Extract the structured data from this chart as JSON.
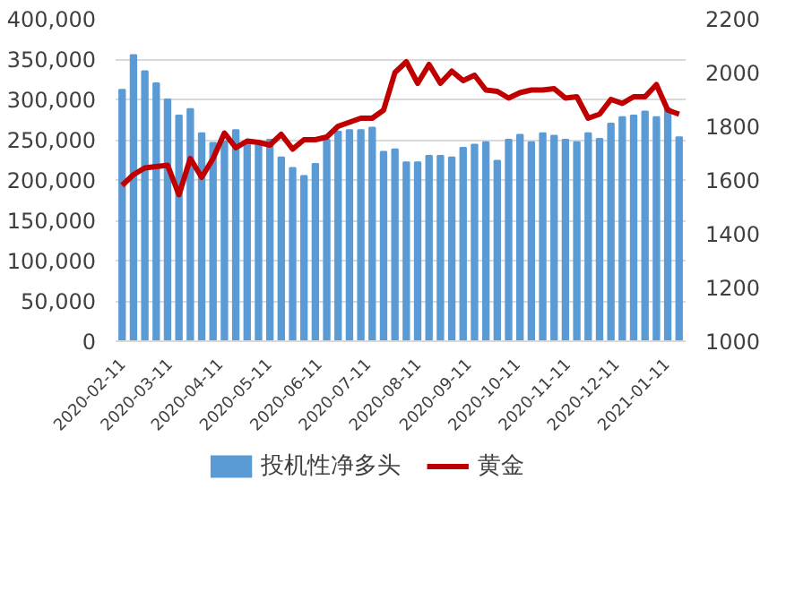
{
  "chart_data": {
    "type": "bar",
    "x": [
      "2020-02-11",
      "2020-02-18",
      "2020-02-25",
      "2020-03-03",
      "2020-03-10",
      "2020-03-17",
      "2020-03-24",
      "2020-03-31",
      "2020-04-07",
      "2020-04-14",
      "2020-04-21",
      "2020-04-28",
      "2020-05-05",
      "2020-05-12",
      "2020-05-19",
      "2020-05-26",
      "2020-06-02",
      "2020-06-09",
      "2020-06-16",
      "2020-06-23",
      "2020-06-30",
      "2020-07-07",
      "2020-07-14",
      "2020-07-21",
      "2020-07-28",
      "2020-08-04",
      "2020-08-11",
      "2020-08-18",
      "2020-08-25",
      "2020-09-01",
      "2020-09-08",
      "2020-09-15",
      "2020-09-22",
      "2020-09-29",
      "2020-10-06",
      "2020-10-13",
      "2020-10-20",
      "2020-10-27",
      "2020-11-03",
      "2020-11-10",
      "2020-11-17",
      "2020-11-24",
      "2020-12-01",
      "2020-12-08",
      "2020-12-15",
      "2020-12-22",
      "2020-12-29",
      "2021-01-05",
      "2021-01-12",
      "2021-01-19"
    ],
    "series": [
      {
        "name": "投机性净多头",
        "color": "#5b9bd5",
        "values": [
          312000,
          355000,
          335000,
          320000,
          300000,
          280000,
          288000,
          258000,
          246000,
          248000,
          262000,
          248000,
          245000,
          250000,
          228000,
          215000,
          205000,
          220000,
          250000,
          260000,
          262000,
          262000,
          265000,
          235000,
          238000,
          222000,
          222000,
          230000,
          230000,
          228000,
          240000,
          244000,
          247000,
          224000,
          250000,
          256000,
          247000,
          258000,
          255000,
          250000,
          247000,
          258000,
          251000,
          270000,
          278000,
          280000,
          285000,
          278000,
          289000,
          253000
        ]
      },
      {
        "name": "黄金",
        "type": "line",
        "axis": "y2",
        "color": "#c00000",
        "values": [
          1580,
          1620,
          1645,
          1650,
          1655,
          1545,
          1680,
          1610,
          1680,
          1775,
          1720,
          1745,
          1740,
          1730,
          1770,
          1715,
          1750,
          1750,
          1760,
          1800,
          1815,
          1830,
          1830,
          1860,
          2000,
          2040,
          1960,
          2030,
          1960,
          2005,
          1970,
          1990,
          1935,
          1930,
          1905,
          1925,
          1935,
          1935,
          1940,
          1905,
          1910,
          1830,
          1845,
          1900,
          1885,
          1910,
          1910,
          1955,
          1860,
          1845
        ]
      }
    ],
    "xlim": [
      "2020-02-07",
      "2021-01-23"
    ],
    "xticks": [
      "2020-02-11",
      "2020-03-11",
      "2020-04-11",
      "2020-05-11",
      "2020-06-11",
      "2020-07-11",
      "2020-08-11",
      "2020-09-11",
      "2020-10-11",
      "2020-11-11",
      "2020-12-11",
      "2021-01-11"
    ],
    "ylim": [
      0,
      400000
    ],
    "yticks": [
      {
        "value": 0,
        "label": "0"
      },
      {
        "value": 50000,
        "label": "50,000"
      },
      {
        "value": 100000,
        "label": "100,000"
      },
      {
        "value": 150000,
        "label": "150,000"
      },
      {
        "value": 200000,
        "label": "200,000"
      },
      {
        "value": 250000,
        "label": "250,000"
      },
      {
        "value": 300000,
        "label": "300,000"
      },
      {
        "value": 350000,
        "label": "350,000"
      },
      {
        "value": 400000,
        "label": "400,000"
      }
    ],
    "y2lim": [
      1000,
      2200
    ],
    "y2ticks": [
      1000,
      1200,
      1400,
      1600,
      1800,
      2000,
      2200
    ],
    "grid": "y",
    "legend": "bottom"
  }
}
